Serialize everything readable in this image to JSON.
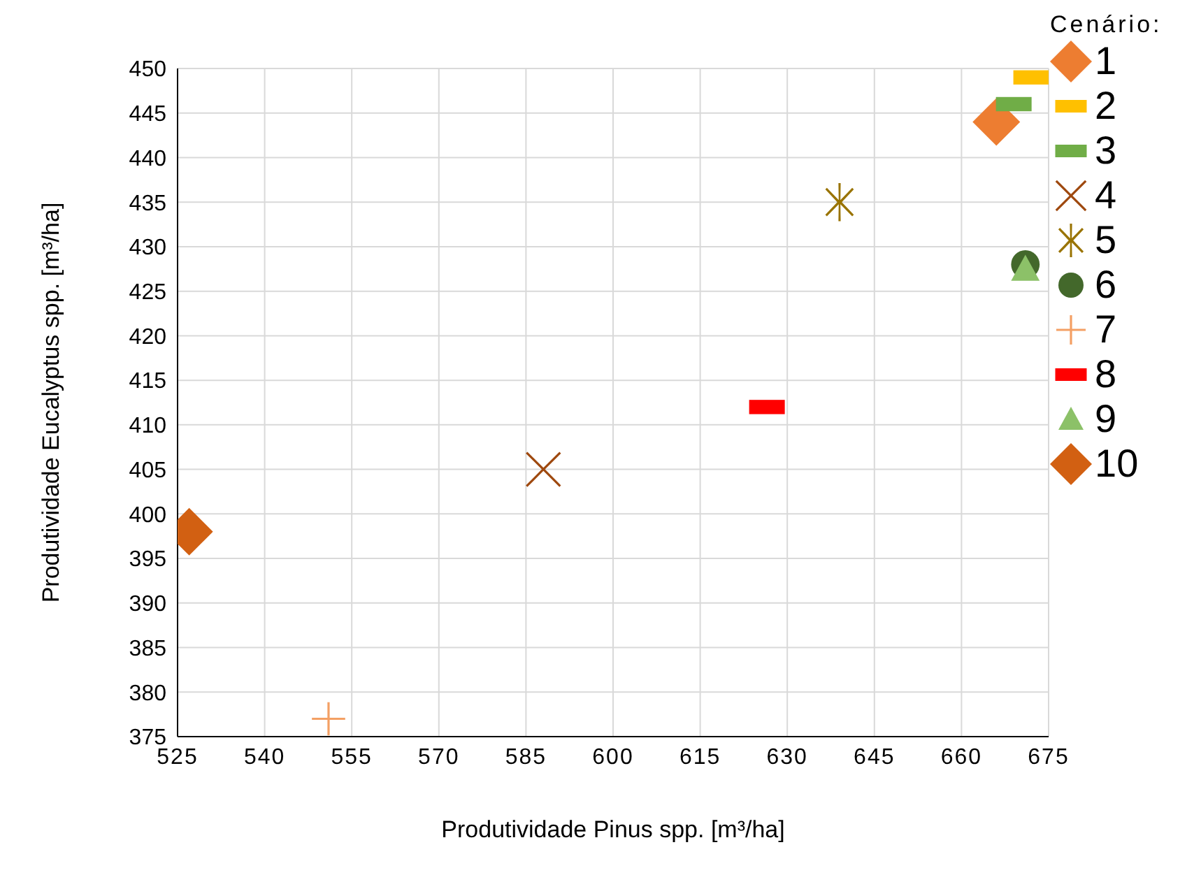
{
  "chart_data": {
    "type": "scatter",
    "xlabel": "Produtividade Pinus spp. [m³/ha]",
    "ylabel": "Produtividade Eucalyptus spp. [m³/ha]",
    "legend_title": "Cenário:",
    "legend": "right",
    "grid": true,
    "xlim": [
      525,
      675
    ],
    "xticks": [
      525,
      540,
      555,
      570,
      585,
      600,
      615,
      630,
      645,
      660,
      675
    ],
    "ylim": [
      375,
      450
    ],
    "yticks": [
      375,
      380,
      385,
      390,
      395,
      400,
      405,
      410,
      415,
      420,
      425,
      430,
      435,
      440,
      445,
      450
    ],
    "series": [
      {
        "name": "1",
        "color": "#ed7d31",
        "marker": "diamond",
        "x": [
          666
        ],
        "values": [
          444
        ]
      },
      {
        "name": "2",
        "color": "#ffc000",
        "marker": "square",
        "x": [
          672
        ],
        "values": [
          449
        ]
      },
      {
        "name": "3",
        "color": "#70ad47",
        "marker": "square",
        "x": [
          669
        ],
        "values": [
          446
        ]
      },
      {
        "name": "4",
        "color": "#9e480e",
        "marker": "x",
        "x": [
          588
        ],
        "values": [
          405
        ]
      },
      {
        "name": "5",
        "color": "#997300",
        "marker": "star",
        "x": [
          639
        ],
        "values": [
          435
        ]
      },
      {
        "name": "6",
        "color": "#43682b",
        "marker": "circle",
        "x": [
          671
        ],
        "values": [
          428
        ]
      },
      {
        "name": "7",
        "color": "#f4a064",
        "marker": "cross",
        "x": [
          551
        ],
        "values": [
          377
        ]
      },
      {
        "name": "8",
        "color": "#ff0000",
        "marker": "square",
        "x": [
          626.5
        ],
        "values": [
          412
        ]
      },
      {
        "name": "9",
        "color": "#8cc168",
        "marker": "triangle",
        "x": [
          671
        ],
        "values": [
          427.5
        ]
      },
      {
        "name": "10",
        "color": "#d26012",
        "marker": "diamond",
        "x": [
          527
        ],
        "values": [
          398
        ]
      }
    ]
  }
}
